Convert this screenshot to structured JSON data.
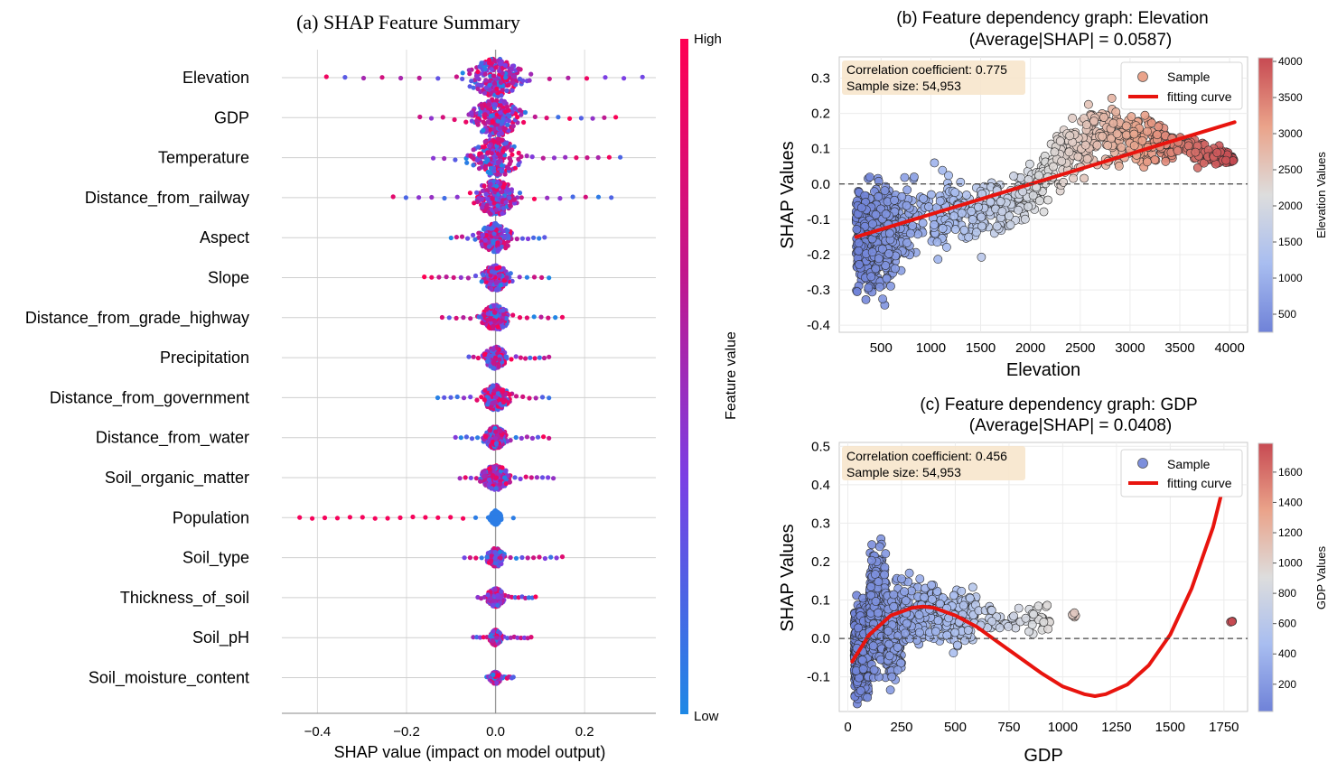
{
  "chart_data": [
    {
      "type": "scatter",
      "title": "(a) SHAP Feature Summary",
      "xlabel": "SHAP value (impact on model output)",
      "ylabel": "",
      "xlim": [
        -0.48,
        0.36
      ],
      "xticks": [
        -0.4,
        -0.2,
        0.0,
        0.2
      ],
      "xtick_labels": [
        "−0.4",
        "−0.2",
        "0.0",
        "0.2"
      ],
      "colorbar": {
        "label": "Feature value",
        "high_label": "High",
        "low_label": "Low",
        "colors": [
          "#1E88E5",
          "#7B3FE4",
          "#C1178D",
          "#FF0052"
        ]
      },
      "features": [
        {
          "name": "Elevation",
          "min": -0.38,
          "max": 0.33,
          "width": 0.1
        },
        {
          "name": "GDP",
          "min": -0.17,
          "max": 0.27,
          "width": 0.09
        },
        {
          "name": "Temperature",
          "min": -0.14,
          "max": 0.28,
          "width": 0.09
        },
        {
          "name": "Distance_from_railway",
          "min": -0.23,
          "max": 0.26,
          "width": 0.08
        },
        {
          "name": "Aspect",
          "min": -0.1,
          "max": 0.11,
          "width": 0.06
        },
        {
          "name": "Slope",
          "min": -0.16,
          "max": 0.12,
          "width": 0.05
        },
        {
          "name": "Distance_from_grade_highway",
          "min": -0.12,
          "max": 0.15,
          "width": 0.05
        },
        {
          "name": "Precipitation",
          "min": -0.06,
          "max": 0.12,
          "width": 0.04
        },
        {
          "name": "Distance_from_government",
          "min": -0.13,
          "max": 0.12,
          "width": 0.05
        },
        {
          "name": "Distance_from_water",
          "min": -0.09,
          "max": 0.12,
          "width": 0.04
        },
        {
          "name": "Soil_organic_matter",
          "min": -0.08,
          "max": 0.13,
          "width": 0.05
        },
        {
          "name": "Population",
          "min": -0.44,
          "max": 0.04,
          "width": 0.015
        },
        {
          "name": "Soil_type",
          "min": -0.07,
          "max": 0.15,
          "width": 0.03
        },
        {
          "name": "Thickness_of_soil",
          "min": -0.04,
          "max": 0.09,
          "width": 0.03
        },
        {
          "name": "Soil_pH",
          "min": -0.05,
          "max": 0.08,
          "width": 0.02
        },
        {
          "name": "Soil_moisture_content",
          "min": -0.02,
          "max": 0.04,
          "width": 0.01
        }
      ]
    },
    {
      "type": "scatter",
      "title": "(b) Feature dependency graph: Elevation",
      "subtitle": "(Average|SHAP| = 0.0587)",
      "xlabel": "Elevation",
      "ylabel": "SHAP Values",
      "xlim": [
        80,
        4180
      ],
      "ylim": [
        -0.42,
        0.36
      ],
      "xticks": [
        500,
        1000,
        1500,
        2000,
        2500,
        3000,
        3500,
        4000
      ],
      "yticks": [
        -0.4,
        -0.3,
        -0.2,
        -0.1,
        0.0,
        0.1,
        0.2,
        0.3
      ],
      "annotation": [
        "Correlation coefficient: 0.775",
        "Sample size: 54,953"
      ],
      "legend": {
        "position": "top-right",
        "entries": [
          "Sample",
          "fitting curve"
        ]
      },
      "colorbar": {
        "label": "Elevation Values",
        "range": [
          250,
          4050
        ],
        "ticks": [
          500,
          1000,
          1500,
          2000,
          2500,
          3000,
          3500,
          4000
        ]
      },
      "fit_line": {
        "x": [
          250,
          4050
        ],
        "y": [
          -0.15,
          0.175
        ]
      },
      "scatter_envelope": {
        "x": [
          250,
          400,
          600,
          900,
          1200,
          1500,
          1800,
          2100,
          2400,
          2700,
          3000,
          3300,
          3600,
          3900,
          4050
        ],
        "y_low": [
          -0.36,
          -0.38,
          -0.33,
          -0.27,
          -0.23,
          -0.22,
          -0.18,
          -0.1,
          -0.05,
          0.0,
          0.02,
          0.03,
          0.04,
          0.04,
          0.05
        ],
        "y_high": [
          0.05,
          0.06,
          0.06,
          0.06,
          0.06,
          0.06,
          0.04,
          0.12,
          0.25,
          0.3,
          0.25,
          0.2,
          0.15,
          0.12,
          0.09
        ]
      }
    },
    {
      "type": "scatter",
      "title": "(c) Feature dependency graph: GDP",
      "subtitle": "(Average|SHAP| = 0.0408)",
      "xlabel": "GDP",
      "ylabel": "SHAP Values",
      "xlim": [
        -40,
        1860
      ],
      "ylim": [
        -0.19,
        0.51
      ],
      "xticks": [
        0,
        250,
        500,
        750,
        1000,
        1250,
        1500,
        1750
      ],
      "yticks": [
        -0.1,
        0.0,
        0.1,
        0.2,
        0.3,
        0.4,
        0.5
      ],
      "annotation": [
        "Correlation coefficient: 0.456",
        "Sample size: 54,953"
      ],
      "legend": {
        "position": "top-right",
        "entries": [
          "Sample",
          "fitting curve"
        ]
      },
      "colorbar": {
        "label": "GDP Values",
        "range": [
          20,
          1790
        ],
        "ticks": [
          200,
          400,
          600,
          800,
          1000,
          1200,
          1400,
          1600
        ]
      },
      "fit_line": {
        "x": [
          20,
          100,
          200,
          300,
          350,
          400,
          500,
          600,
          700,
          800,
          900,
          1000,
          1100,
          1150,
          1200,
          1300,
          1400,
          1500,
          1600,
          1700,
          1780
        ],
        "y": [
          -0.06,
          0.01,
          0.06,
          0.08,
          0.083,
          0.08,
          0.06,
          0.03,
          -0.01,
          -0.05,
          -0.09,
          -0.125,
          -0.145,
          -0.15,
          -0.145,
          -0.12,
          -0.07,
          0.01,
          0.13,
          0.29,
          0.47
        ]
      },
      "clusters": [
        {
          "x": [
            30,
            100
          ],
          "y": [
            -0.17,
            0.12
          ],
          "n": 650
        },
        {
          "x": [
            100,
            180
          ],
          "y": [
            -0.13,
            0.27
          ],
          "n": 450
        },
        {
          "x": [
            180,
            250
          ],
          "y": [
            -0.14,
            0.17
          ],
          "n": 260
        },
        {
          "x": [
            250,
            600
          ],
          "y": [
            -0.04,
            0.17
          ],
          "n": 260
        },
        {
          "x": [
            600,
            950
          ],
          "y": [
            -0.01,
            0.1
          ],
          "n": 60
        },
        {
          "x": [
            1030,
            1060
          ],
          "y": [
            0.05,
            0.07
          ],
          "n": 6
        },
        {
          "x": [
            1780,
            1790
          ],
          "y": [
            0.04,
            0.05
          ],
          "n": 3
        }
      ]
    }
  ]
}
